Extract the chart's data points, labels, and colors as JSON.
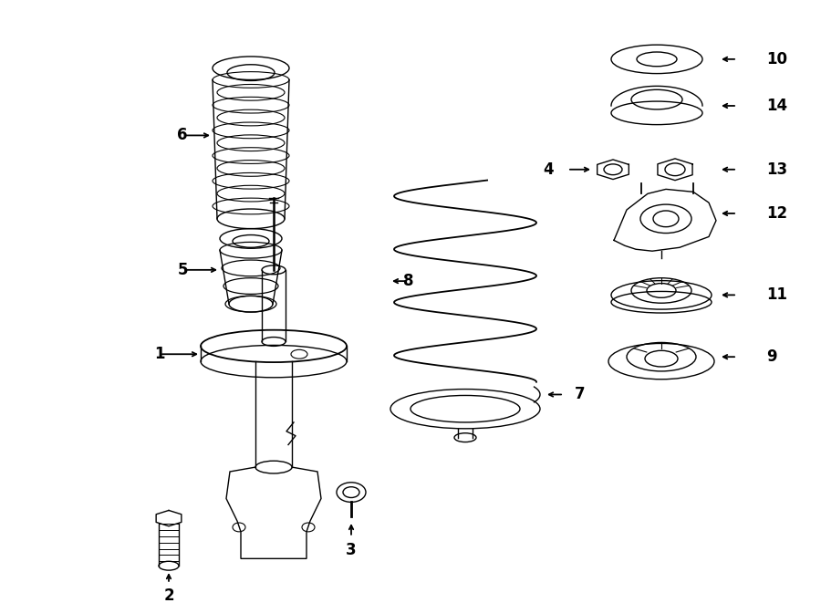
{
  "bg_color": "#ffffff",
  "line_color": "#000000",
  "fig_width": 9.0,
  "fig_height": 6.61,
  "dpi": 100,
  "lw": 1.0,
  "lw_thick": 1.3
}
